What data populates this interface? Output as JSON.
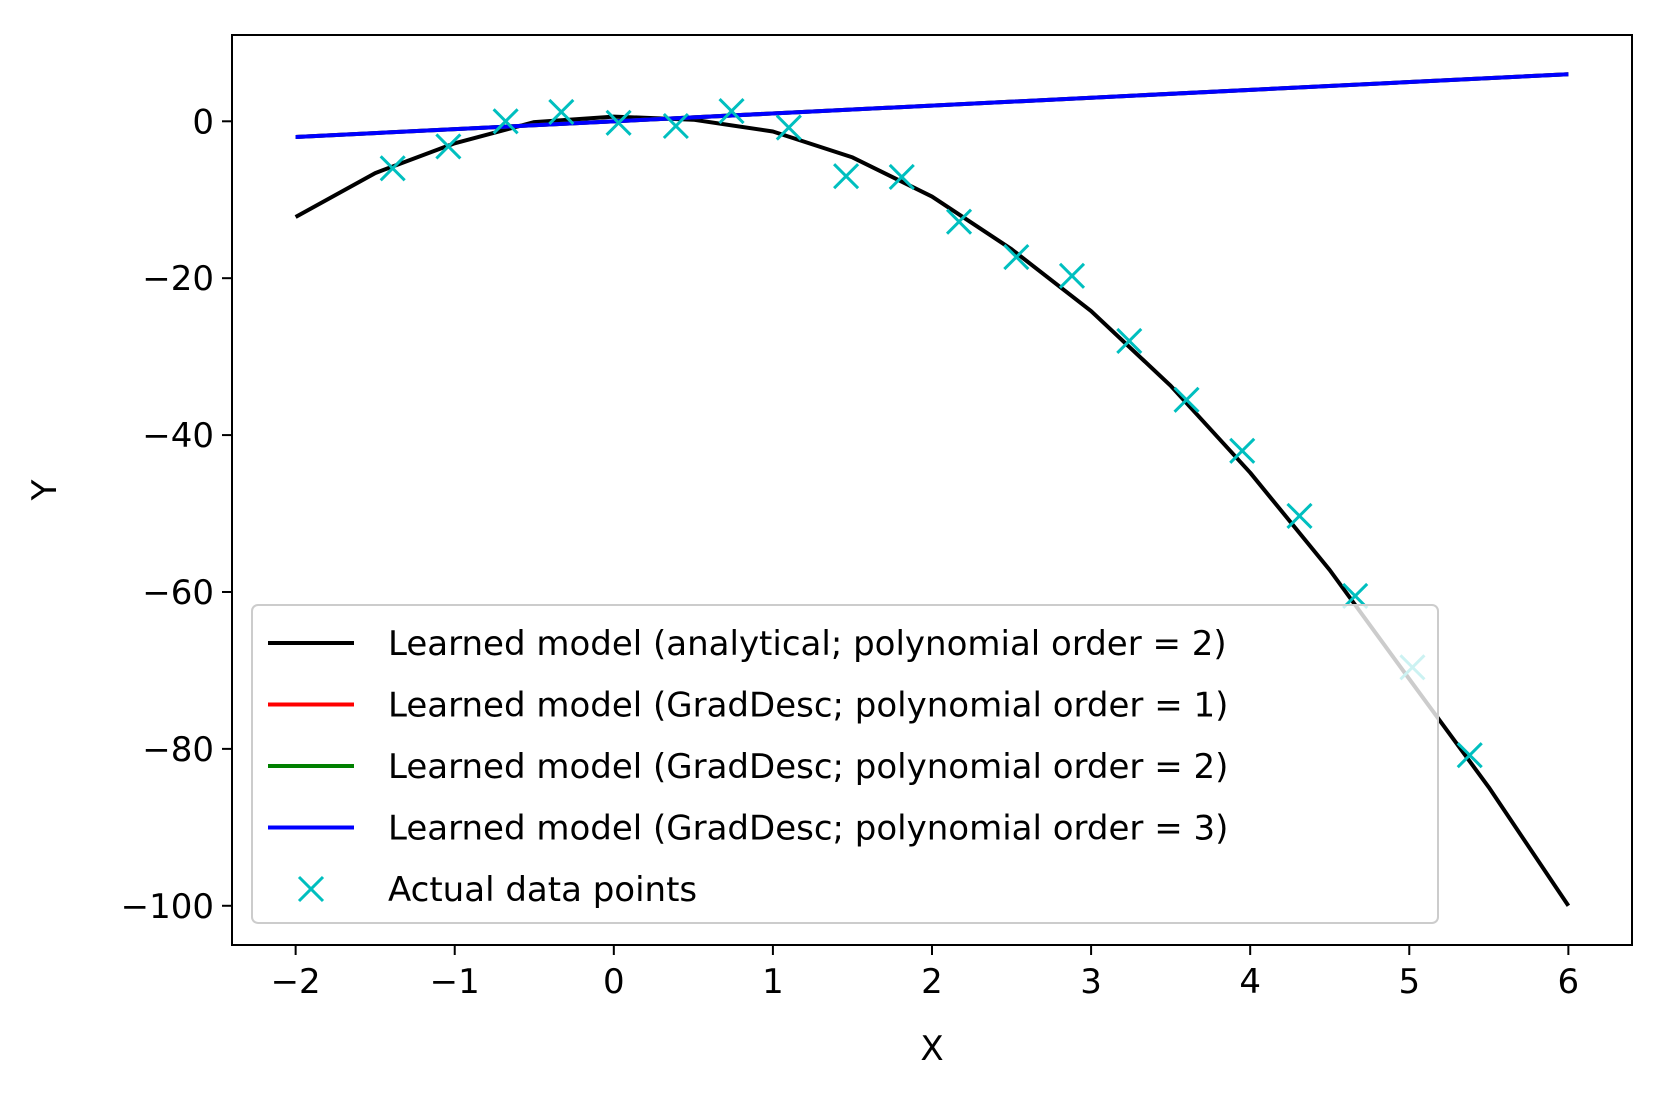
{
  "chart_data": {
    "type": "line",
    "xlabel": "X",
    "ylabel": "Y",
    "xlim": [
      -2.4,
      6.4
    ],
    "ylim": [
      -105,
      11
    ],
    "xticks": [
      -2,
      -1,
      0,
      1,
      2,
      3,
      4,
      5,
      6
    ],
    "yticks": [
      0,
      -20,
      -40,
      -60,
      -80,
      -100
    ],
    "grid": false,
    "legend_position": "lower-left",
    "series": [
      {
        "name": "Learned model (analytical; polynomial order = 2)",
        "color": "#000000",
        "style": "line",
        "x": [
          -2.0,
          -1.5,
          -1.0,
          -0.5,
          0.0,
          0.5,
          1.0,
          1.5,
          2.0,
          2.5,
          3.0,
          3.5,
          4.0,
          4.5,
          5.0,
          5.5,
          6.0
        ],
        "y": [
          -12.2,
          -6.6,
          -2.8,
          -0.1,
          0.6,
          0.2,
          -1.3,
          -4.6,
          -9.6,
          -16.3,
          -24.2,
          -33.7,
          -44.8,
          -57.2,
          -71.1,
          -84.9,
          -100.0
        ]
      },
      {
        "name": "Learned model (GradDesc; polynomial order = 1)",
        "color": "#ff0000",
        "style": "line",
        "x": [
          -2.0,
          6.0
        ],
        "y": [
          -2.0,
          6.0
        ]
      },
      {
        "name": "Learned model (GradDesc; polynomial order = 2)",
        "color": "#008000",
        "style": "line",
        "x": [
          -2.0,
          6.0
        ],
        "y": [
          -2.0,
          6.0
        ]
      },
      {
        "name": "Learned model (GradDesc; polynomial order = 3)",
        "color": "#0000ff",
        "style": "line",
        "x": [
          -2.0,
          6.0
        ],
        "y": [
          -2.0,
          6.0
        ]
      },
      {
        "name": "Actual data points",
        "color": "#00bfbf",
        "style": "x-marker",
        "x": [
          -1.39,
          -1.04,
          -0.68,
          -0.33,
          0.03,
          0.39,
          0.74,
          1.1,
          1.46,
          1.81,
          2.17,
          2.53,
          2.88,
          3.24,
          3.6,
          3.95,
          4.31,
          4.66,
          5.02,
          5.38
        ],
        "y": [
          -6.0,
          -3.2,
          0.0,
          1.2,
          -0.2,
          -0.6,
          1.3,
          -0.8,
          -7.0,
          -7.1,
          -12.8,
          -17.3,
          -19.7,
          -28.0,
          -35.5,
          -42.0,
          -50.3,
          -60.5,
          -69.6,
          -80.8
        ]
      }
    ]
  }
}
